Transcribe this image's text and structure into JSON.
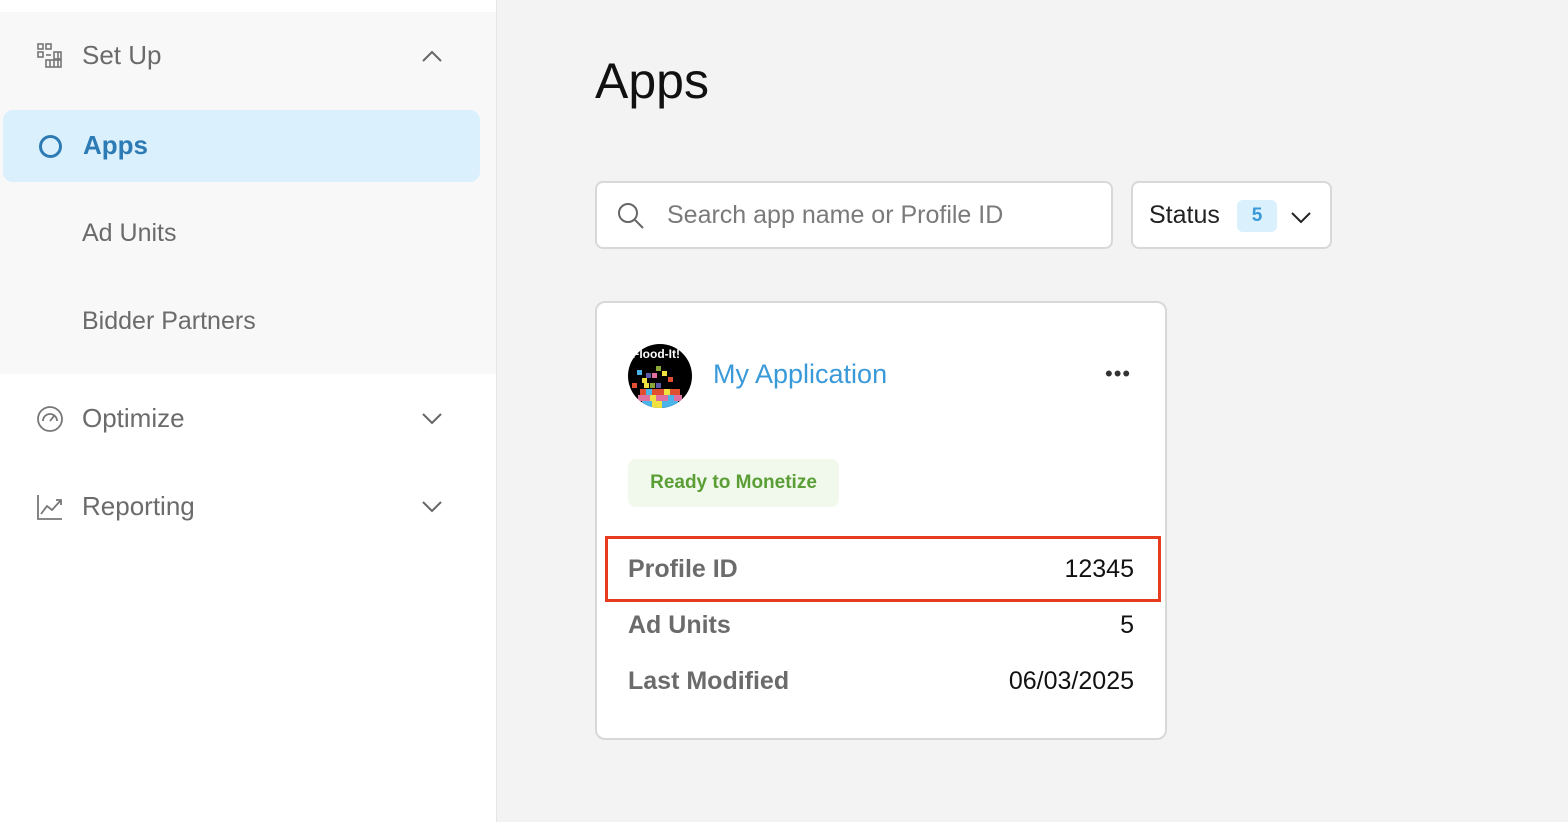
{
  "sidebar": {
    "setup": {
      "label": "Set Up",
      "items": [
        {
          "label": "Apps",
          "active": true
        },
        {
          "label": "Ad Units"
        },
        {
          "label": "Bidder Partners"
        }
      ]
    },
    "optimize": {
      "label": "Optimize"
    },
    "reporting": {
      "label": "Reporting"
    }
  },
  "main": {
    "title": "Apps",
    "search": {
      "placeholder": "Search app name or Profile ID",
      "value": ""
    },
    "status_filter": {
      "label": "Status",
      "count": "5"
    },
    "card": {
      "logo_text": "Flood-It!",
      "name": "My Application",
      "status": "Ready to Monetize",
      "fields": [
        {
          "label": "Profile ID",
          "value": "12345",
          "highlighted": true
        },
        {
          "label": "Ad Units",
          "value": "5"
        },
        {
          "label": "Last Modified",
          "value": "06/03/2025"
        }
      ]
    }
  },
  "colors": {
    "accent": "#2d7bb5",
    "link": "#3a9ad9",
    "success": "#5a9e35",
    "highlight": "#e63b1f"
  }
}
